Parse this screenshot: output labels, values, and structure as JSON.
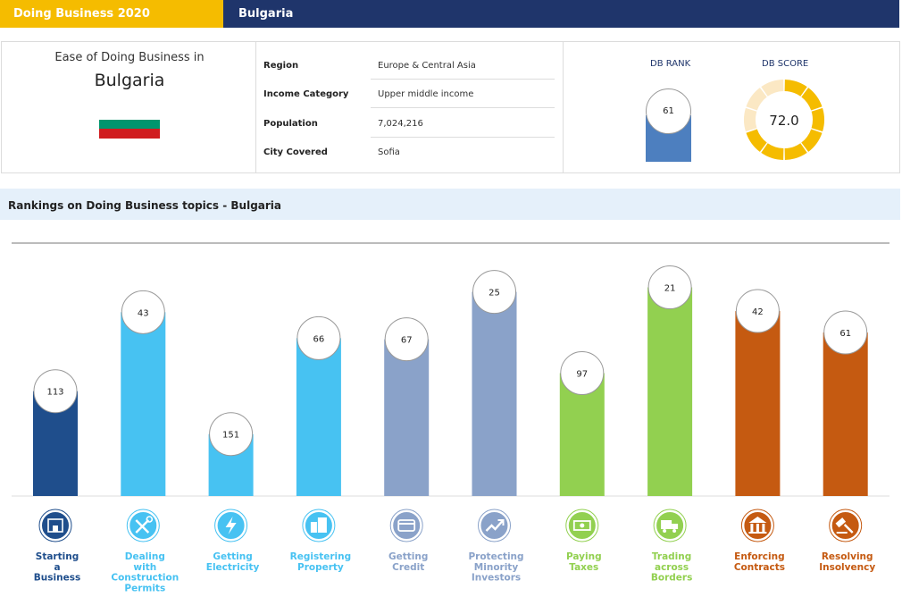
{
  "header": {
    "left_title": "Doing Business  2020",
    "right_title": "Bulgaria"
  },
  "overview": {
    "ease_label": "Ease of Doing Business in",
    "country": "Bulgaria",
    "flag_colors": [
      "#ffffff",
      "#00966e",
      "#d01c1f"
    ]
  },
  "info": [
    {
      "key": "Region",
      "value": "Europe & Central Asia"
    },
    {
      "key": "Income Category",
      "value": "Upper middle income"
    },
    {
      "key": "Population",
      "value": "7,024,216"
    },
    {
      "key": "City Covered",
      "value": "Sofia"
    }
  ],
  "db": {
    "rank_title": "DB RANK",
    "rank_value": "61",
    "score_title": "DB SCORE",
    "score_value": "72.0",
    "score_fraction": 0.72,
    "colors": {
      "rank_bar": "#4d7fbf",
      "score_fill": "#f5bc00",
      "score_track": "#fbe8c4"
    }
  },
  "section_title": "Rankings on Doing Business topics - Bulgaria",
  "chart_data": {
    "type": "bar",
    "title": "",
    "ylim": [
      0,
      190
    ],
    "inverted_rank_axis": true,
    "categories": [
      "Starting\na\nBusiness",
      "Dealing\nwith\nConstruction\nPermits",
      "Getting\nElectricity",
      "Registering\nProperty",
      "Getting\nCredit",
      "Protecting\nMinority\nInvestors",
      "Paying\nTaxes",
      "Trading\nacross\nBorders",
      "Enforcing\nContracts",
      "Resolving\nInsolvency"
    ],
    "values": [
      113,
      43,
      151,
      66,
      67,
      25,
      97,
      21,
      42,
      61
    ],
    "colors": [
      "#1f4e8c",
      "#47c2f2",
      "#47c2f2",
      "#47c2f2",
      "#8aa2c9",
      "#8aa2c9",
      "#92d050",
      "#92d050",
      "#c55a11",
      "#c55a11"
    ],
    "icons": [
      "building-icon",
      "tools-icon",
      "lightning-icon",
      "buildings-icon",
      "credit-card-icon",
      "trend-up-icon",
      "money-icon",
      "truck-icon",
      "courthouse-icon",
      "gavel-icon"
    ]
  }
}
